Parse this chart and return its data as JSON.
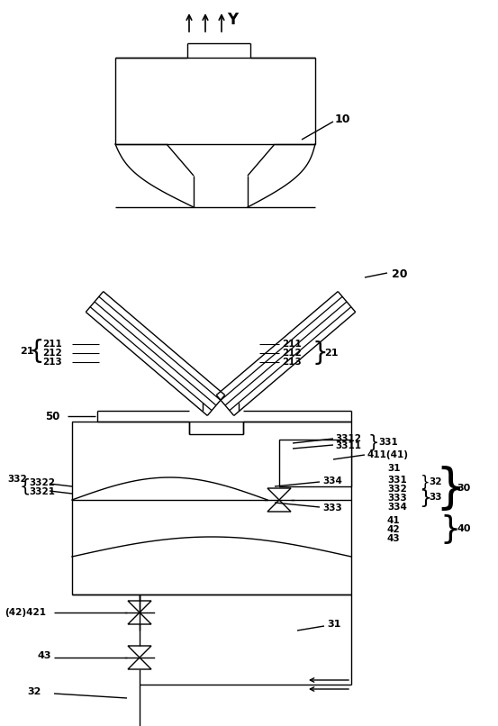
{
  "bg_color": "#ffffff",
  "line_color": "#000000",
  "lw": 1.0,
  "fig_width": 5.53,
  "fig_height": 8.06
}
